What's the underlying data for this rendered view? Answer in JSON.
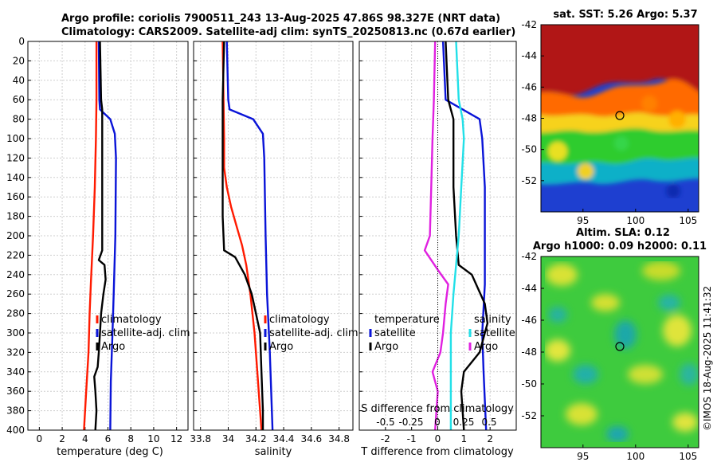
{
  "header": {
    "line1": "Argo profile: coriolis 7900511_243 13-Aug-2025 47.86S 98.327E (NRT data)",
    "line2": "Climatology: CARS2009. Satellite-adj clim: synTS_20250813.nc (0.67d earlier)"
  },
  "credit": "©IMOS 18-Aug-2025 11:41:32",
  "colors": {
    "climatology": "#ff1a00",
    "satellite": "#0a14d8",
    "argo": "#000000",
    "cyan": "#22e0e8",
    "magenta": "#e020e0"
  },
  "chart_data": [
    {
      "type": "line",
      "id": "temperature",
      "xlabel": "temperature (deg C)",
      "xlim": [
        -1,
        13
      ],
      "ylim": [
        0,
        400
      ],
      "x_ticks": [
        "0",
        "2",
        "4",
        "6",
        "8",
        "10",
        "12"
      ],
      "y_ticks": [
        "0",
        "20",
        "40",
        "60",
        "80",
        "100",
        "120",
        "140",
        "160",
        "180",
        "200",
        "220",
        "240",
        "260",
        "280",
        "300",
        "320",
        "340",
        "360",
        "380",
        "400"
      ],
      "legend": [
        "climatology",
        "satellite-adj. clim",
        "Argo"
      ],
      "series": [
        {
          "name": "climatology",
          "color": "climatology",
          "points": [
            [
              5.0,
              0
            ],
            [
              5.0,
              60
            ],
            [
              4.95,
              100
            ],
            [
              4.85,
              150
            ],
            [
              4.7,
              200
            ],
            [
              4.5,
              250
            ],
            [
              4.4,
              280
            ],
            [
              4.3,
              320
            ],
            [
              4.1,
              360
            ],
            [
              3.9,
              400
            ]
          ]
        },
        {
          "name": "satellite-adj. clim",
          "color": "satellite",
          "points": [
            [
              5.2,
              0
            ],
            [
              5.25,
              60
            ],
            [
              5.3,
              70
            ],
            [
              6.2,
              80
            ],
            [
              6.6,
              95
            ],
            [
              6.7,
              120
            ],
            [
              6.65,
              200
            ],
            [
              6.5,
              260
            ],
            [
              6.4,
              300
            ],
            [
              6.25,
              350
            ],
            [
              6.2,
              400
            ]
          ]
        },
        {
          "name": "Argo",
          "color": "argo",
          "points": [
            [
              5.3,
              0
            ],
            [
              5.4,
              60
            ],
            [
              5.5,
              70
            ],
            [
              5.5,
              150
            ],
            [
              5.5,
              215
            ],
            [
              5.2,
              225
            ],
            [
              5.7,
              230
            ],
            [
              5.8,
              245
            ],
            [
              5.6,
              260
            ],
            [
              5.4,
              280
            ],
            [
              5.3,
              300
            ],
            [
              5.2,
              320
            ],
            [
              5.1,
              335
            ],
            [
              4.8,
              345
            ],
            [
              4.9,
              360
            ],
            [
              5.0,
              380
            ],
            [
              4.9,
              400
            ]
          ]
        }
      ]
    },
    {
      "type": "line",
      "id": "salinity",
      "xlabel": "salinity",
      "xlim": [
        33.75,
        34.9
      ],
      "ylim": [
        0,
        400
      ],
      "x_ticks": [
        "33.8",
        "34",
        "34.2",
        "34.4",
        "34.6",
        "34.8"
      ],
      "legend": [
        "climatology",
        "satellite-adj. clim",
        "Argo"
      ],
      "series": [
        {
          "name": "climatology",
          "color": "climatology",
          "points": [
            [
              33.96,
              0
            ],
            [
              33.97,
              100
            ],
            [
              33.97,
              130
            ],
            [
              33.99,
              150
            ],
            [
              34.02,
              170
            ],
            [
              34.06,
              190
            ],
            [
              34.1,
              210
            ],
            [
              34.13,
              230
            ],
            [
              34.16,
              260
            ],
            [
              34.19,
              300
            ],
            [
              34.21,
              340
            ],
            [
              34.24,
              400
            ]
          ]
        },
        {
          "name": "satellite-adj. clim",
          "color": "satellite",
          "points": [
            [
              33.99,
              0
            ],
            [
              34.0,
              60
            ],
            [
              34.01,
              70
            ],
            [
              34.18,
              80
            ],
            [
              34.25,
              95
            ],
            [
              34.26,
              120
            ],
            [
              34.27,
              200
            ],
            [
              34.28,
              260
            ],
            [
              34.3,
              320
            ],
            [
              34.31,
              360
            ],
            [
              34.32,
              400
            ]
          ]
        },
        {
          "name": "Argo",
          "color": "argo",
          "points": [
            [
              33.97,
              0
            ],
            [
              33.96,
              60
            ],
            [
              33.96,
              100
            ],
            [
              33.96,
              180
            ],
            [
              33.97,
              215
            ],
            [
              34.05,
              222
            ],
            [
              34.12,
              240
            ],
            [
              34.17,
              260
            ],
            [
              34.2,
              280
            ],
            [
              34.23,
              300
            ],
            [
              34.24,
              340
            ],
            [
              34.25,
              380
            ],
            [
              34.25,
              400
            ]
          ]
        }
      ]
    },
    {
      "type": "line",
      "id": "difference",
      "xlabel": "T difference from climatology",
      "xlim": [
        -3,
        3
      ],
      "ylim": [
        0,
        400
      ],
      "x_ticks": [
        "-2",
        "-1",
        "0",
        "1",
        "2"
      ],
      "secondary_xlabel": "S difference from climatology",
      "secondary_x_ticks": [
        "-0.5",
        "-0.25",
        "0",
        "0.25",
        "0.5"
      ],
      "legend_left_title": "temperature",
      "legend_left": [
        "satellite",
        "Argo"
      ],
      "legend_right_title": "salinity",
      "legend_right": [
        "satellite",
        "Argo"
      ],
      "series": [
        {
          "name": "T satellite",
          "color": "satellite",
          "points": [
            [
              0.2,
              0
            ],
            [
              0.3,
              60
            ],
            [
              1.6,
              80
            ],
            [
              1.7,
              100
            ],
            [
              1.8,
              150
            ],
            [
              1.8,
              250
            ],
            [
              1.7,
              300
            ],
            [
              1.75,
              340
            ],
            [
              1.85,
              400
            ]
          ]
        },
        {
          "name": "T Argo",
          "color": "argo",
          "points": [
            [
              0.3,
              0
            ],
            [
              0.4,
              60
            ],
            [
              0.6,
              80
            ],
            [
              0.6,
              150
            ],
            [
              0.7,
              200
            ],
            [
              0.8,
              230
            ],
            [
              1.3,
              240
            ],
            [
              1.8,
              270
            ],
            [
              1.9,
              290
            ],
            [
              1.6,
              320
            ],
            [
              1.0,
              340
            ],
            [
              0.9,
              360
            ],
            [
              1.0,
              400
            ]
          ]
        },
        {
          "name": "S satellite",
          "color": "cyan",
          "points": [
            [
              0.7,
              0
            ],
            [
              0.8,
              60
            ],
            [
              0.95,
              80
            ],
            [
              1.0,
              100
            ],
            [
              0.9,
              150
            ],
            [
              0.8,
              200
            ],
            [
              0.7,
              230
            ],
            [
              0.6,
              260
            ],
            [
              0.5,
              300
            ],
            [
              0.5,
              400
            ]
          ]
        },
        {
          "name": "S Argo",
          "color": "magenta",
          "points": [
            [
              -0.1,
              0
            ],
            [
              -0.15,
              60
            ],
            [
              -0.2,
              100
            ],
            [
              -0.25,
              150
            ],
            [
              -0.3,
              200
            ],
            [
              -0.5,
              215
            ],
            [
              0.0,
              235
            ],
            [
              0.4,
              250
            ],
            [
              0.3,
              270
            ],
            [
              0.2,
              300
            ],
            [
              0.1,
              320
            ],
            [
              -0.2,
              340
            ],
            [
              0.0,
              360
            ],
            [
              -0.1,
              400
            ]
          ]
        }
      ]
    },
    {
      "type": "heatmap",
      "id": "sst-map",
      "title": "sat. SST: 5.26 Argo: 5.37",
      "x_ticks": [
        "95",
        "100",
        "105"
      ],
      "y_ticks": [
        "-42",
        "-44",
        "-46",
        "-48",
        "-50",
        "-52"
      ],
      "xlim": [
        91,
        106
      ],
      "ylim": [
        -54,
        -42
      ],
      "marker": [
        98.33,
        -47.86
      ]
    },
    {
      "type": "heatmap",
      "id": "sla-map",
      "title_line1": "Altim. SLA: 0.12",
      "title_line2": "Argo h1000: 0.09 h2000: 0.11",
      "x_ticks": [
        "95",
        "100",
        "105"
      ],
      "y_ticks": [
        "-42",
        "-44",
        "-46",
        "-48",
        "-50",
        "-52"
      ],
      "xlim": [
        91,
        106
      ],
      "ylim": [
        -54,
        -42
      ],
      "marker": [
        98.33,
        -47.86
      ]
    }
  ]
}
